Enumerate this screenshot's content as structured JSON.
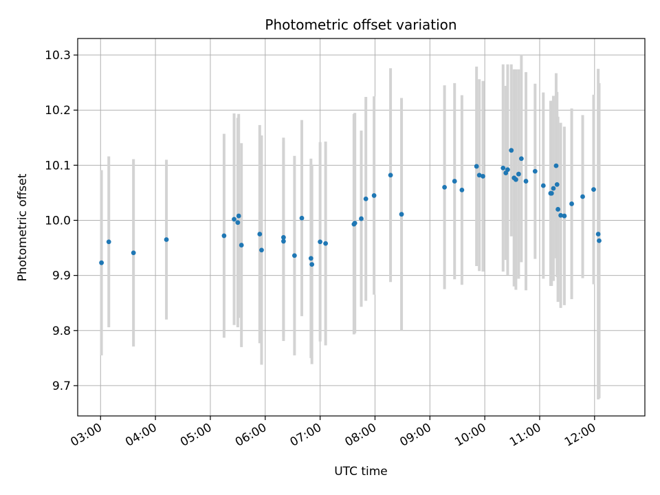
{
  "chart_data": {
    "type": "scatter",
    "title": "Photometric offset variation",
    "xlabel": "UTC time",
    "ylabel": "Photometric offset",
    "x_unit": "UTC time (HH:MM)",
    "xlim": [
      "02:35",
      "12:55"
    ],
    "ylim": [
      9.645,
      10.33
    ],
    "grid": true,
    "x_ticks": [
      "03:00",
      "04:00",
      "05:00",
      "06:00",
      "07:00",
      "08:00",
      "09:00",
      "10:00",
      "11:00",
      "12:00"
    ],
    "y_ticks": [
      9.7,
      9.8,
      9.9,
      10.0,
      10.1,
      10.2,
      10.3
    ],
    "y_tick_labels": [
      "9.7",
      "9.8",
      "9.9",
      "10.0",
      "10.1",
      "10.2",
      "10.3"
    ],
    "colors": {
      "points": "#1f77b4",
      "error_bars": "#d3d3d3",
      "grid": "#b0b0b0"
    },
    "series": [
      {
        "x": [
          "03:01",
          "03:09",
          "03:36",
          "04:12",
          "05:15",
          "05:26",
          "05:30",
          "05:31",
          "05:34",
          "05:54",
          "05:56",
          "06:20",
          "06:20",
          "06:32",
          "06:40",
          "06:50",
          "06:51",
          "07:00",
          "07:06",
          "07:37",
          "07:38",
          "07:45",
          "07:50",
          "07:59",
          "08:17",
          "08:29",
          "09:16",
          "09:27",
          "09:35",
          "09:51",
          "09:54",
          "09:58",
          "10:20",
          "10:23",
          "10:25",
          "10:29",
          "10:32",
          "10:34",
          "10:37",
          "10:40",
          "10:45",
          "10:55",
          "11:04",
          "11:12",
          "11:13",
          "11:15",
          "11:18",
          "11:19",
          "11:20",
          "11:23",
          "11:27",
          "11:35",
          "11:47",
          "11:59",
          "12:04",
          "12:05"
        ],
        "y": [
          9.923,
          9.961,
          9.941,
          9.965,
          9.972,
          10.002,
          9.996,
          10.008,
          9.955,
          9.975,
          9.946,
          9.969,
          9.962,
          9.936,
          10.004,
          9.931,
          9.92,
          9.961,
          9.958,
          9.993,
          9.995,
          10.003,
          10.039,
          10.045,
          10.082,
          10.011,
          10.06,
          10.071,
          10.055,
          10.098,
          10.082,
          10.08,
          10.095,
          10.086,
          10.092,
          10.127,
          10.077,
          10.074,
          10.084,
          10.112,
          10.071,
          10.089,
          10.063,
          10.049,
          10.049,
          10.058,
          10.099,
          10.065,
          10.02,
          10.009,
          10.008,
          10.03,
          10.043,
          10.056,
          9.975,
          9.963
        ],
        "y_err": [
          0.168,
          0.155,
          0.17,
          0.145,
          0.185,
          0.192,
          0.19,
          0.185,
          0.185,
          0.198,
          0.208,
          0.181,
          0.181,
          0.181,
          0.178,
          0.181,
          0.181,
          0.181,
          0.185,
          0.2,
          0.2,
          0.16,
          0.185,
          0.18,
          0.194,
          0.211,
          0.185,
          0.178,
          0.172,
          0.181,
          0.174,
          0.173,
          0.188,
          0.158,
          0.191,
          0.156,
          0.197,
          0.2,
          0.19,
          0.188,
          0.198,
          0.159,
          0.169,
          0.168,
          0.168,
          0.168,
          0.168,
          0.168,
          0.168,
          0.168,
          0.162,
          0.173,
          0.148,
          0.172,
          0.3,
          0.286
        ]
      }
    ]
  }
}
